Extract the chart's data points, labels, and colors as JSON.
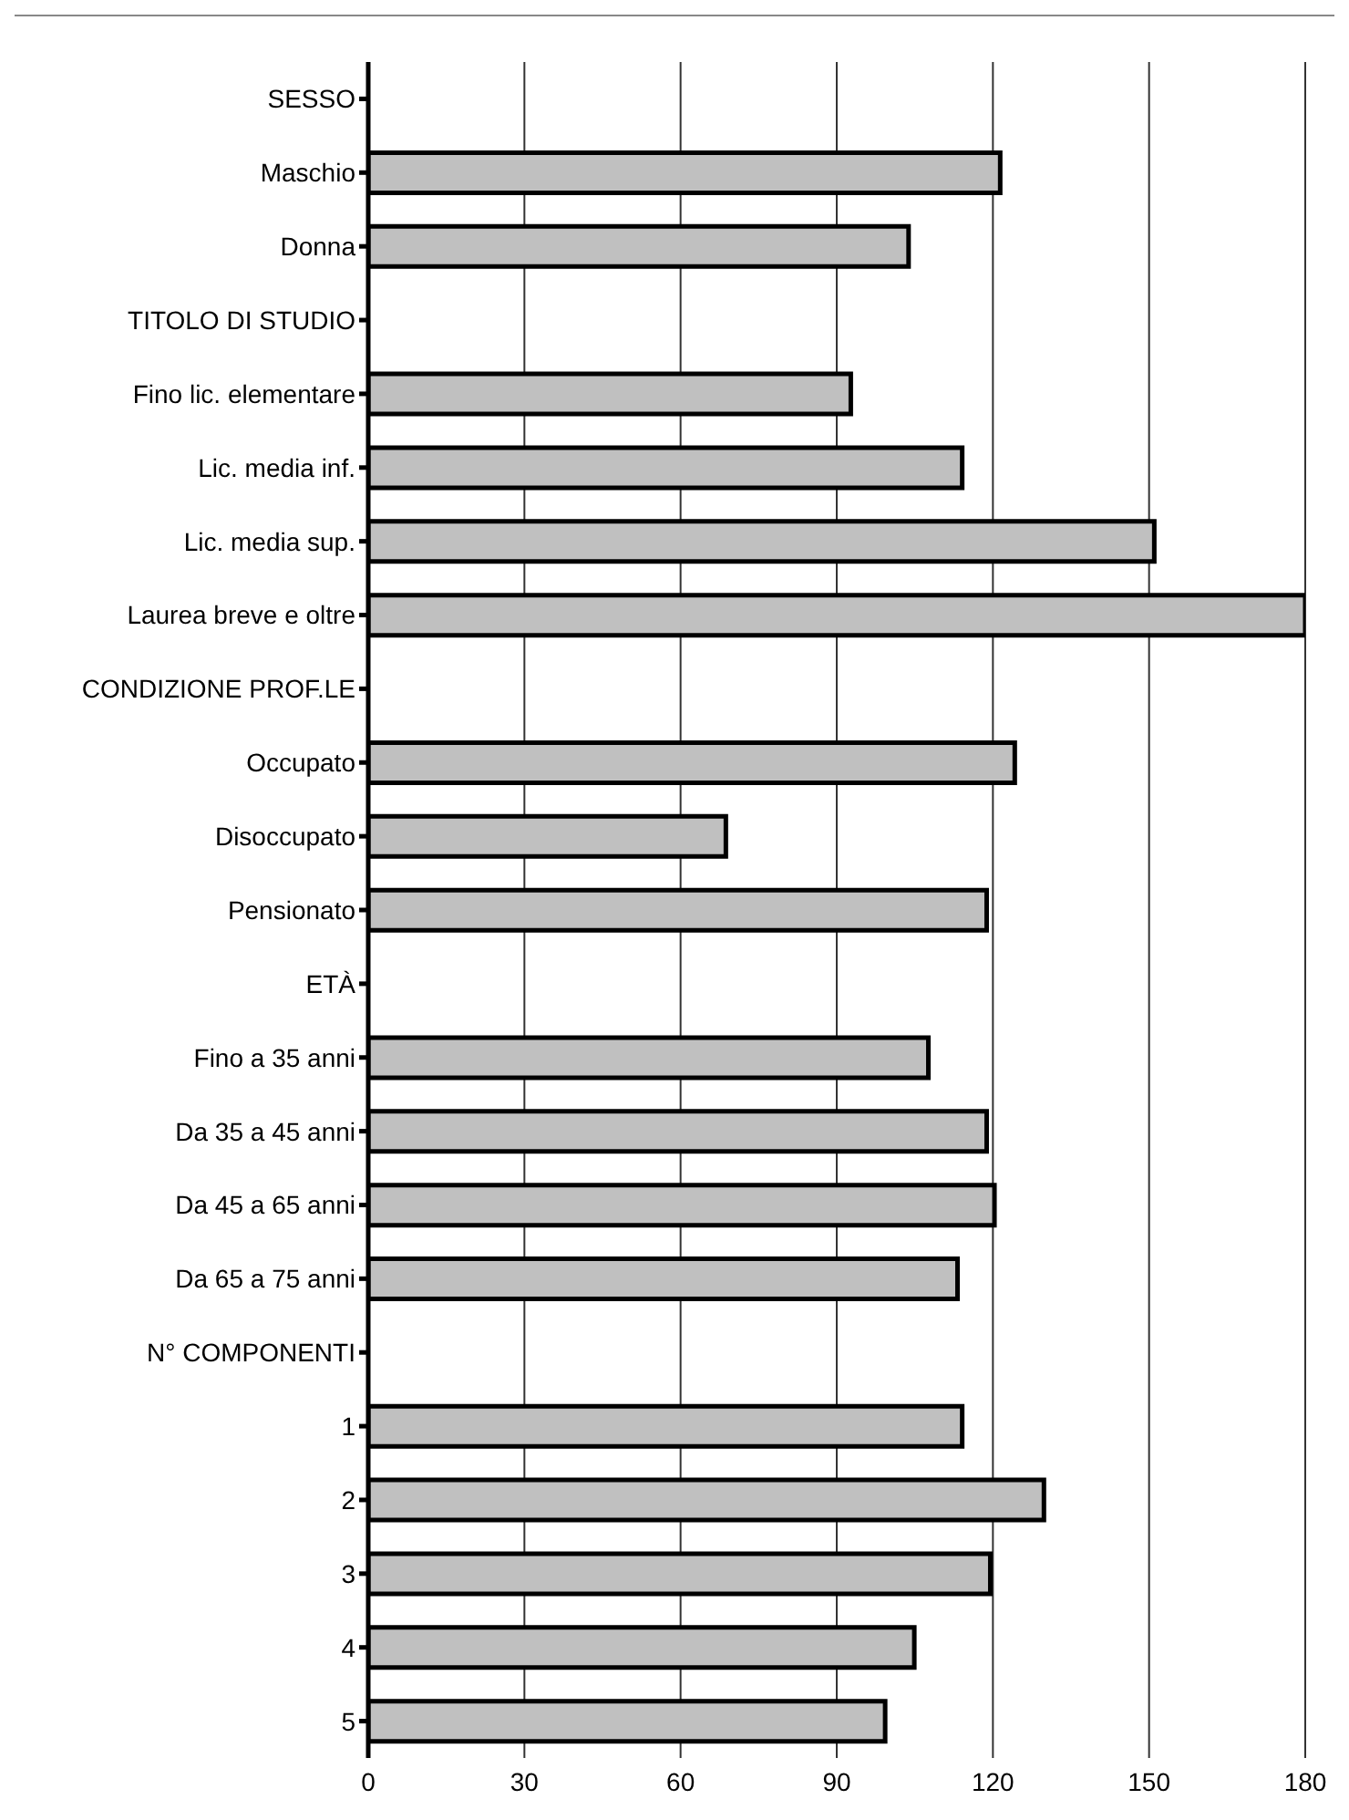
{
  "chart_data": {
    "type": "bar",
    "orientation": "horizontal",
    "categories": [
      "SESSO",
      "Maschio",
      "Donna",
      "TITOLO DI STUDIO",
      "Fino lic. elementare",
      "Lic. media inf.",
      "Lic. media sup.",
      "Laurea breve e oltre",
      "CONDIZIONE PROF.LE",
      "Occupato",
      "Disoccupato",
      "Pensionato",
      "ETÀ",
      "Fino a 35 anni",
      "Da 35 a 45 anni",
      "Da 45 a 65 anni",
      "Da 65 a 75 anni",
      "N° COMPONENTI",
      "1",
      "2",
      "3",
      "4",
      "5"
    ],
    "values": [
      null,
      121.4,
      103.8,
      null,
      92.7,
      114.1,
      151,
      180,
      null,
      124.2,
      68.7,
      118.8,
      null,
      107.6,
      118.8,
      120.3,
      113.2,
      null,
      114.1,
      129.8,
      119.5,
      104.9,
      99.3
    ],
    "color": "#c0c0c0",
    "xlim": [
      0,
      180
    ],
    "xticks": [
      0,
      30,
      60,
      90,
      120,
      150,
      180
    ],
    "grid": "x"
  }
}
